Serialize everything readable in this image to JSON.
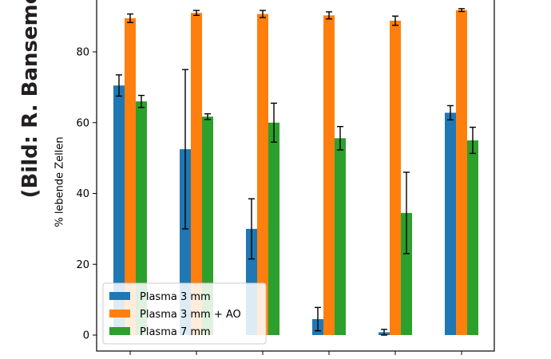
{
  "credit_text": "(Bild: R. Banseme",
  "chart_data": {
    "type": "bar",
    "ylabel": "% lebende Zellen",
    "yticks": [
      0,
      20,
      40,
      60,
      80
    ],
    "ylim": [
      -2.5,
      100
    ],
    "group_count": 6,
    "series": [
      {
        "name": "Plasma 3 mm",
        "color": "#1f77b4",
        "values": [
          70.5,
          52.5,
          30.0,
          4.5,
          0.8,
          62.8
        ],
        "errors": [
          3.0,
          22.5,
          8.5,
          3.3,
          0.8,
          2.0
        ]
      },
      {
        "name": "Plasma 3 mm + AO",
        "color": "#ff7f0e",
        "values": [
          89.5,
          91.0,
          90.7,
          90.3,
          88.8,
          91.8
        ],
        "errors": [
          1.2,
          0.7,
          1.0,
          1.0,
          1.3,
          0.4
        ]
      },
      {
        "name": "Plasma 7 mm",
        "color": "#2ca02c",
        "values": [
          66.0,
          61.7,
          60.0,
          55.6,
          34.5,
          55.0
        ],
        "errors": [
          1.7,
          0.8,
          5.5,
          3.3,
          11.5,
          3.7
        ]
      }
    ],
    "legend_position": "lower-left",
    "grid": false
  }
}
